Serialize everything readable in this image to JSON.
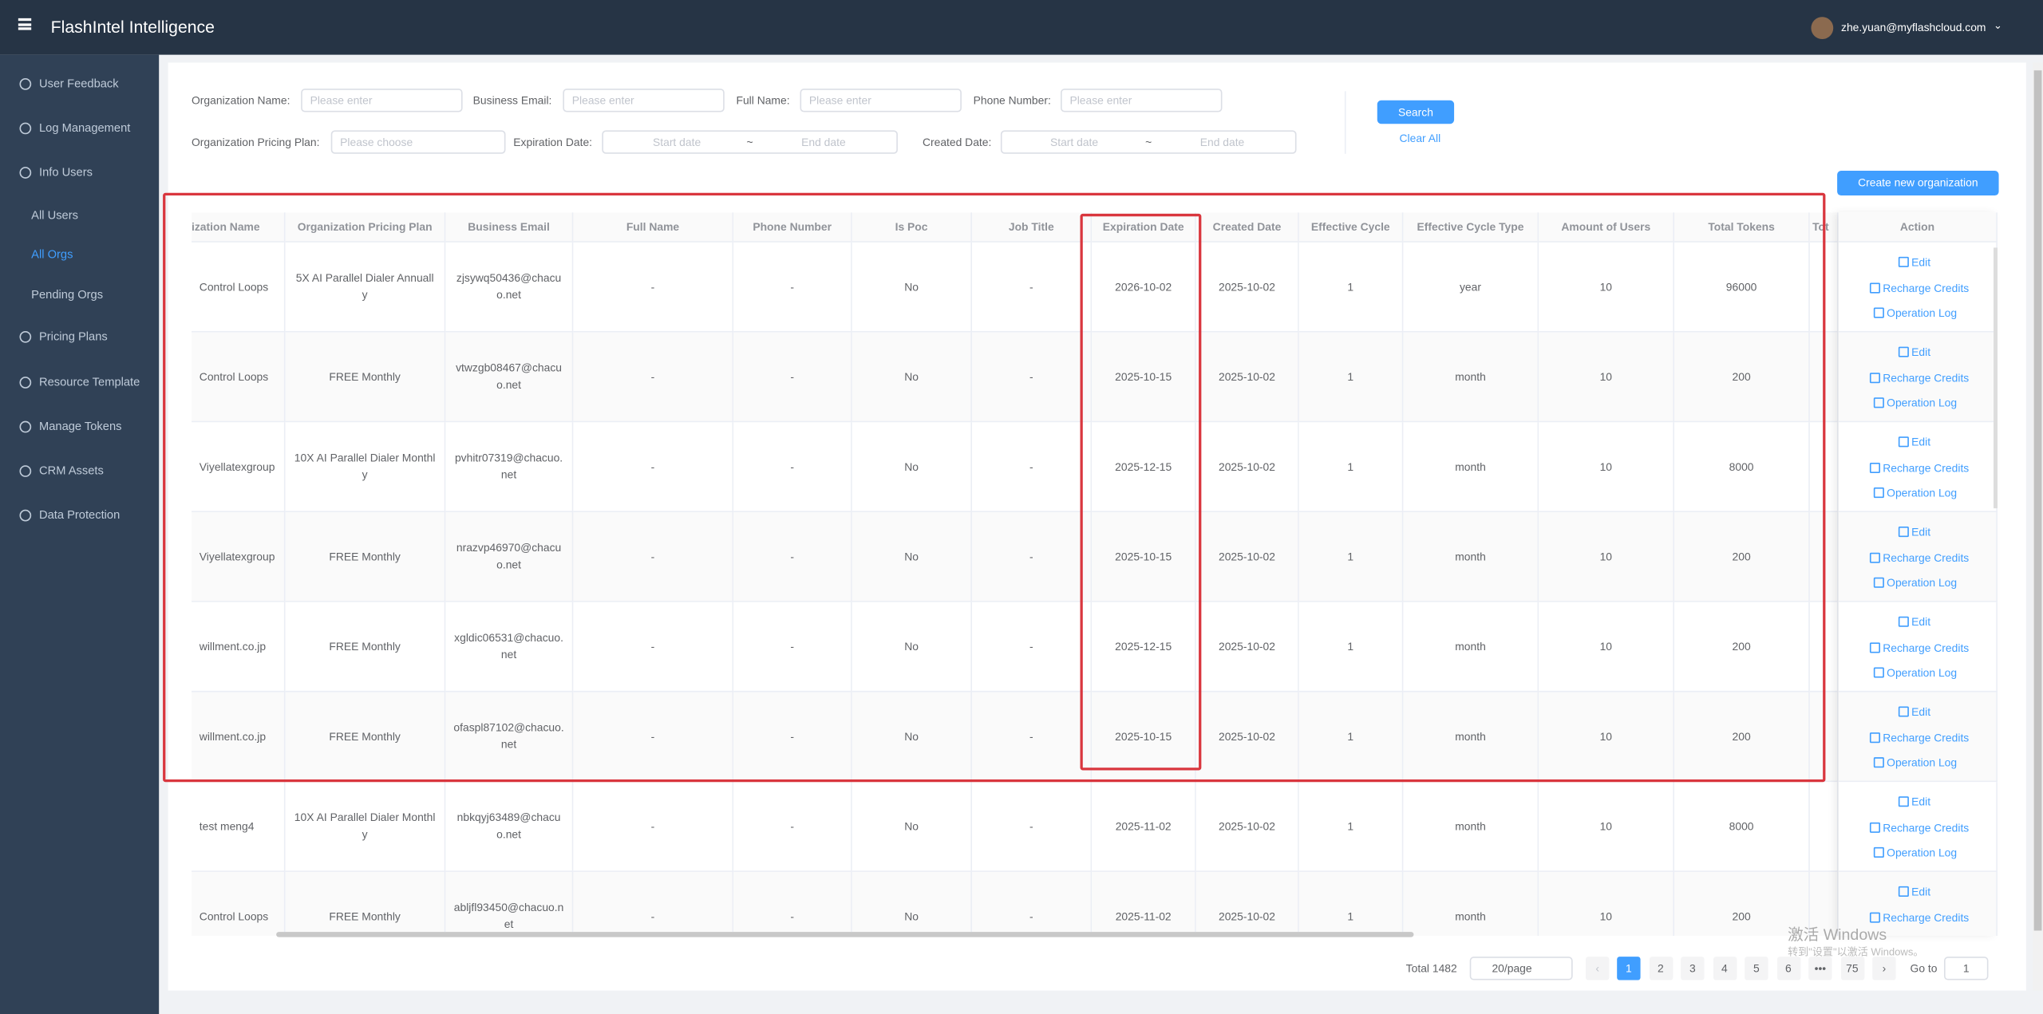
{
  "header": {
    "title": "FlashIntel Intelligence",
    "user": "zhe.yuan@myflashcloud.com"
  },
  "sidebar": {
    "items": [
      "User Feedback",
      "Log Management",
      "Info Users",
      "All Users",
      "All Orgs",
      "Pending Orgs",
      "Pricing Plans",
      "Resource Template",
      "Manage Tokens",
      "CRM Assets",
      "Data Protection"
    ]
  },
  "filters": {
    "org_name": {
      "label": "Organization Name:",
      "placeholder": "Please enter"
    },
    "email": {
      "label": "Business Email:",
      "placeholder": "Please enter"
    },
    "full_name": {
      "label": "Full Name:",
      "placeholder": "Please enter"
    },
    "phone": {
      "label": "Phone Number:",
      "placeholder": "Please enter"
    },
    "plan": {
      "label": "Organization Pricing Plan:",
      "placeholder": "Please choose"
    },
    "expiration": {
      "label": "Expiration Date:",
      "start": "Start date",
      "separator": "~",
      "end": "End date"
    },
    "created": {
      "label": "Created Date:",
      "start": "Start date",
      "separator": "~",
      "end": "End date"
    }
  },
  "buttons": {
    "search": "Search",
    "clear": "Clear All",
    "create": "Create new organization"
  },
  "table": {
    "columns": [
      "ization Name",
      "Organization Pricing Plan",
      "Business Email",
      "Full Name",
      "Phone Number",
      "Is Poc",
      "Job Title",
      "Expiration Date",
      "Created Date",
      "Effective Cycle",
      "Effective Cycle Type",
      "Amount of Users",
      "Total Tokens",
      "Tot",
      "Action"
    ],
    "actions": [
      "Edit",
      "Recharge Credits",
      "Operation Log"
    ],
    "rows": [
      [
        "Control Loops",
        "5X AI Parallel Dialer Annually",
        "zjsywq50436@chacuo.net",
        "-",
        "-",
        "No",
        "-",
        "2026-10-02",
        "2025-10-02",
        1,
        "year",
        10,
        96000
      ],
      [
        "Control Loops",
        "FREE Monthly",
        "vtwzgb08467@chacuo.net",
        "-",
        "-",
        "No",
        "-",
        "2025-10-15",
        "2025-10-02",
        1,
        "month",
        10,
        200
      ],
      [
        "Viyellatexgroup",
        "10X AI Parallel Dialer Monthly",
        "pvhitr07319@chacuo.net",
        "-",
        "-",
        "No",
        "-",
        "2025-12-15",
        "2025-10-02",
        1,
        "month",
        10,
        8000
      ],
      [
        "Viyellatexgroup",
        "FREE Monthly",
        "nrazvp46970@chacuo.net",
        "-",
        "-",
        "No",
        "-",
        "2025-10-15",
        "2025-10-02",
        1,
        "month",
        10,
        200
      ],
      [
        "willment.co.jp",
        "FREE Monthly",
        "xgldic06531@chacuo.net",
        "-",
        "-",
        "No",
        "-",
        "2025-12-15",
        "2025-10-02",
        1,
        "month",
        10,
        200
      ],
      [
        "willment.co.jp",
        "FREE Monthly",
        "ofaspl87102@chacuo.net",
        "-",
        "-",
        "No",
        "-",
        "2025-10-15",
        "2025-10-02",
        1,
        "month",
        10,
        200
      ],
      [
        "test meng4",
        "10X AI Parallel Dialer Monthly",
        "nbkqyj63489@chacuo.net",
        "-",
        "-",
        "No",
        "-",
        "2025-11-02",
        "2025-10-02",
        1,
        "month",
        10,
        8000
      ],
      [
        "Control Loops",
        "FREE Monthly",
        "abljfl93450@chacuo.net",
        "-",
        "-",
        "No",
        "-",
        "2025-11-02",
        "2025-10-02",
        1,
        "month",
        10,
        200
      ]
    ]
  },
  "pagination": {
    "total": "Total 1482",
    "page_size": "20/page",
    "pages": [
      1,
      2,
      3,
      4,
      5,
      6,
      "•••",
      75
    ],
    "goto": "Go to",
    "goto_value": 1
  },
  "watermark": {
    "title": "激活 Windows",
    "subtitle": "转到\"设置\"以激活 Windows。"
  }
}
